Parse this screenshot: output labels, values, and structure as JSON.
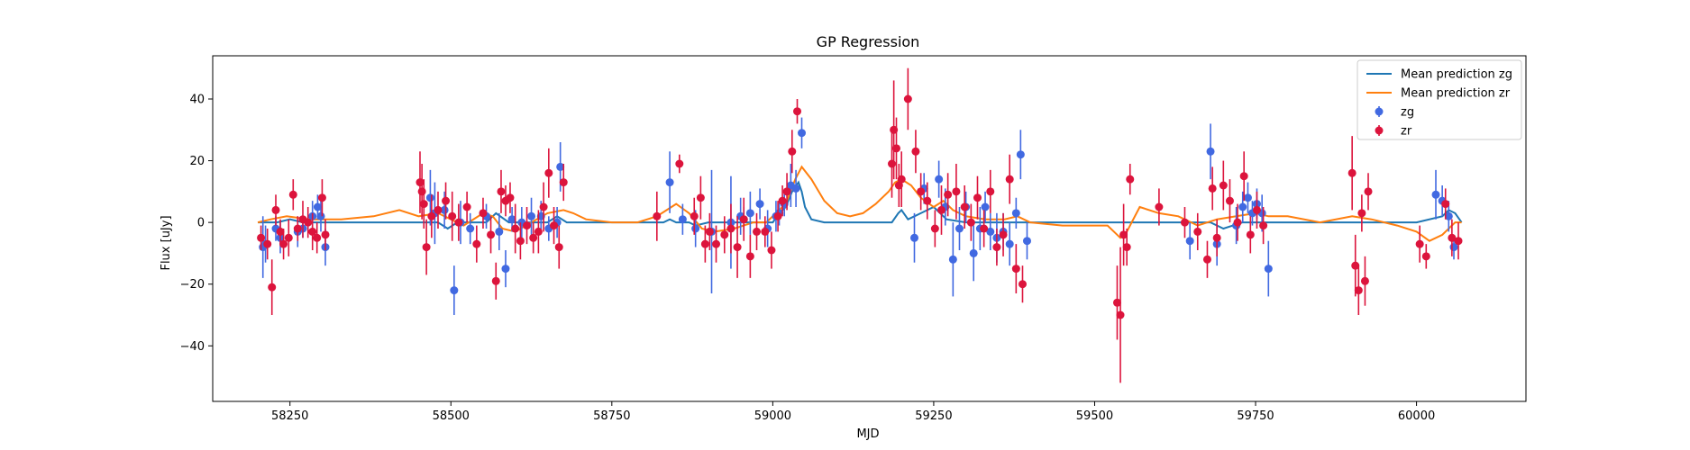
{
  "chart_data": {
    "type": "scatter",
    "title": "GP Regression",
    "xlabel": "MJD",
    "ylabel": "Flux [uJy]",
    "xlim": [
      58130,
      60170
    ],
    "ylim": [
      -58,
      54
    ],
    "xticks": [
      58250,
      58500,
      58750,
      59000,
      59250,
      59500,
      59750,
      60000
    ],
    "yticks": [
      -40,
      -20,
      0,
      20,
      40
    ],
    "grid": false,
    "legend_position": "top-right",
    "legend": [
      {
        "label": "Mean prediction zg",
        "kind": "line",
        "color": "#1f77b4"
      },
      {
        "label": "Mean prediction zr",
        "kind": "line",
        "color": "#ff7f0e"
      },
      {
        "label": "zg",
        "kind": "errorbar",
        "color": "#4169e1"
      },
      {
        "label": "zr",
        "kind": "errorbar",
        "color": "#dc143c"
      }
    ],
    "series": [
      {
        "name": "Mean prediction zg",
        "kind": "line",
        "color": "#1f77b4",
        "x": [
          58200,
          58230,
          58250,
          58270,
          58300,
          58320,
          58400,
          58450,
          58480,
          58495,
          58510,
          58530,
          58555,
          58570,
          58590,
          58620,
          58650,
          58665,
          58680,
          58720,
          58800,
          58830,
          58840,
          58850,
          58870,
          58880,
          58900,
          58920,
          58950,
          58980,
          59000,
          59010,
          59020,
          59030,
          59040,
          59045,
          59050,
          59060,
          59080,
          59120,
          59160,
          59185,
          59195,
          59200,
          59210,
          59230,
          59250,
          59260,
          59270,
          59300,
          59350,
          59380,
          59400,
          59500,
          59530,
          59540,
          59560,
          59650,
          59680,
          59700,
          59730,
          59760,
          59800,
          59900,
          60000,
          60040,
          60050,
          60060,
          60070
        ],
        "y": [
          0,
          0,
          1,
          0,
          0,
          0,
          0,
          0,
          0,
          -2,
          0,
          0,
          0,
          3,
          0,
          0,
          0,
          2,
          0,
          0,
          0,
          0,
          1,
          0,
          0,
          -1,
          0,
          0,
          0,
          0,
          0,
          3,
          5,
          10,
          13,
          10,
          5,
          1,
          0,
          0,
          0,
          0,
          3,
          4,
          1,
          3,
          5,
          3,
          1,
          0,
          0,
          0,
          0,
          0,
          0,
          0,
          0,
          0,
          0,
          -2,
          0,
          0,
          0,
          0,
          0,
          2,
          4,
          3,
          0
        ]
      },
      {
        "name": "Mean prediction zr",
        "kind": "line",
        "color": "#ff7f0e",
        "x": [
          58200,
          58220,
          58245,
          58280,
          58330,
          58380,
          58420,
          58450,
          58480,
          58500,
          58520,
          58550,
          58565,
          58580,
          58600,
          58625,
          58650,
          58675,
          58690,
          58710,
          58750,
          58790,
          58820,
          58850,
          58870,
          58890,
          58910,
          58940,
          58970,
          58990,
          59005,
          59020,
          59035,
          59045,
          59060,
          59080,
          59100,
          59120,
          59140,
          59160,
          59180,
          59190,
          59200,
          59215,
          59230,
          59250,
          59265,
          59280,
          59300,
          59330,
          59360,
          59380,
          59400,
          59450,
          59500,
          59520,
          59540,
          59550,
          59570,
          59600,
          59630,
          59660,
          59690,
          59720,
          59750,
          59770,
          59800,
          59850,
          59900,
          59930,
          59970,
          60000,
          60020,
          60040,
          60060,
          60070
        ],
        "y": [
          0,
          1,
          2,
          1,
          1,
          2,
          4,
          2,
          3,
          1,
          -1,
          3,
          2,
          -2,
          -3,
          0,
          3,
          4,
          3,
          1,
          0,
          0,
          2,
          6,
          3,
          -2,
          -3,
          -2,
          0,
          0,
          3,
          6,
          14,
          18,
          14,
          7,
          3,
          2,
          3,
          6,
          10,
          13,
          14,
          12,
          8,
          5,
          7,
          4,
          2,
          1,
          1,
          2,
          0,
          -1,
          -1,
          -1,
          -5,
          -3,
          5,
          3,
          2,
          -1,
          1,
          2,
          3,
          2,
          2,
          0,
          2,
          1,
          -1,
          -3,
          -6,
          -4,
          0,
          0
        ]
      },
      {
        "name": "zg",
        "kind": "errorbar",
        "color": "#4169e1",
        "x": [
          58208,
          58212,
          58228,
          58235,
          58262,
          58270,
          58285,
          58293,
          58298,
          58305,
          58468,
          58475,
          58490,
          58505,
          58515,
          58530,
          58555,
          58575,
          58585,
          58595,
          58610,
          58625,
          58640,
          58652,
          58665,
          58670,
          58840,
          58860,
          58880,
          58905,
          58935,
          58950,
          58955,
          58965,
          58980,
          58992,
          59005,
          59010,
          59018,
          59028,
          59036,
          59045,
          59220,
          59235,
          59258,
          59268,
          59280,
          59290,
          59300,
          59312,
          59322,
          59330,
          59338,
          59348,
          59358,
          59368,
          59378,
          59385,
          59395,
          59648,
          59680,
          59690,
          59720,
          59730,
          59738,
          59745,
          59752,
          59760,
          59770,
          60030,
          60040,
          60050,
          60058
        ],
        "y": [
          -8,
          -7,
          -2,
          -5,
          -3,
          -2,
          2,
          5,
          2,
          -8,
          8,
          3,
          4,
          -22,
          0,
          -2,
          2,
          -3,
          -15,
          1,
          0,
          2,
          2,
          -2,
          0,
          18,
          13,
          1,
          -2,
          -3,
          0,
          2,
          1,
          3,
          6,
          -2,
          2,
          3,
          6,
          12,
          11,
          29,
          -5,
          11,
          14,
          5,
          -12,
          -2,
          5,
          -10,
          -2,
          5,
          -3,
          -5,
          -3,
          -7,
          3,
          22,
          -6,
          -6,
          23,
          -7,
          -1,
          5,
          8,
          3,
          6,
          3,
          -15,
          9,
          7,
          2,
          -8
        ],
        "err": [
          10,
          6,
          4,
          5,
          5,
          3,
          5,
          4,
          5,
          6,
          9,
          10,
          6,
          8,
          7,
          5,
          4,
          6,
          6,
          4,
          5,
          6,
          5,
          4,
          5,
          8,
          10,
          5,
          6,
          20,
          15,
          6,
          4,
          7,
          5,
          6,
          5,
          4,
          4,
          7,
          6,
          5,
          8,
          5,
          6,
          6,
          12,
          7,
          5,
          9,
          7,
          5,
          6,
          8,
          6,
          7,
          5,
          8,
          6,
          6,
          9,
          7,
          6,
          5,
          5,
          4,
          5,
          6,
          9,
          8,
          5,
          5,
          4
        ]
      },
      {
        "name": "zr",
        "kind": "errorbar",
        "color": "#dc143c",
        "x": [
          58205,
          58215,
          58222,
          58228,
          58235,
          58240,
          58248,
          58255,
          58262,
          58270,
          58278,
          58285,
          58292,
          58300,
          58305,
          58452,
          58455,
          58458,
          58462,
          58470,
          58480,
          58492,
          58502,
          58512,
          58525,
          58540,
          58550,
          58562,
          58570,
          58578,
          58585,
          58592,
          58600,
          58608,
          58618,
          58628,
          58636,
          58644,
          58652,
          58660,
          58668,
          58675,
          58820,
          58855,
          58878,
          58888,
          58895,
          58902,
          58912,
          58925,
          58935,
          58945,
          58955,
          58965,
          58975,
          58988,
          58998,
          59008,
          59015,
          59022,
          59030,
          59038,
          59185,
          59188,
          59192,
          59196,
          59200,
          59210,
          59222,
          59230,
          59240,
          59252,
          59262,
          59272,
          59285,
          59298,
          59308,
          59318,
          59328,
          59338,
          59348,
          59358,
          59368,
          59378,
          59388,
          59535,
          59540,
          59545,
          59550,
          59555,
          59600,
          59640,
          59660,
          59675,
          59683,
          59690,
          59700,
          59710,
          59722,
          59732,
          59742,
          59752,
          59762,
          59900,
          59905,
          59910,
          59915,
          59920,
          59925,
          60005,
          60015,
          60045,
          60055,
          60065
        ],
        "y": [
          -5,
          -7,
          -21,
          4,
          -3,
          -7,
          -5,
          9,
          -2,
          1,
          0,
          -3,
          -5,
          8,
          -4,
          13,
          10,
          6,
          -8,
          2,
          4,
          7,
          2,
          0,
          5,
          -7,
          3,
          -4,
          -19,
          10,
          7,
          8,
          -2,
          -6,
          -1,
          -5,
          -3,
          5,
          16,
          -1,
          -8,
          13,
          2,
          19,
          2,
          8,
          -7,
          -3,
          -7,
          -4,
          -2,
          -8,
          1,
          -11,
          -3,
          -3,
          -9,
          2,
          7,
          10,
          23,
          36,
          19,
          30,
          24,
          12,
          14,
          40,
          23,
          10,
          7,
          -2,
          4,
          9,
          10,
          5,
          0,
          8,
          -2,
          10,
          -8,
          -4,
          14,
          -15,
          -20,
          -26,
          -30,
          -4,
          -8,
          14,
          5,
          0,
          -3,
          -12,
          11,
          -5,
          12,
          7,
          0,
          15,
          -4,
          4,
          -1,
          16,
          -14,
          -22,
          3,
          -19,
          10,
          -7,
          -11,
          6,
          -5,
          -6
        ],
        "err": [
          4,
          5,
          9,
          5,
          4,
          5,
          6,
          5,
          4,
          6,
          5,
          6,
          5,
          6,
          5,
          10,
          9,
          8,
          9,
          7,
          6,
          6,
          8,
          6,
          5,
          6,
          5,
          6,
          6,
          7,
          5,
          5,
          8,
          6,
          6,
          5,
          7,
          8,
          8,
          6,
          7,
          6,
          8,
          3,
          6,
          7,
          6,
          6,
          6,
          6,
          8,
          10,
          7,
          7,
          6,
          5,
          6,
          5,
          5,
          6,
          7,
          4,
          11,
          16,
          10,
          7,
          9,
          10,
          7,
          6,
          6,
          6,
          8,
          7,
          9,
          7,
          6,
          7,
          6,
          7,
          6,
          7,
          8,
          8,
          6,
          12,
          22,
          10,
          6,
          5,
          6,
          5,
          6,
          6,
          7,
          6,
          8,
          7,
          6,
          8,
          6,
          6,
          6,
          12,
          10,
          8,
          6,
          8,
          6,
          6,
          4,
          5,
          6,
          6
        ]
      }
    ]
  }
}
